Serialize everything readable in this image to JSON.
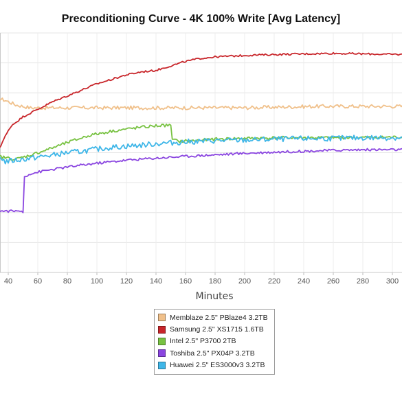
{
  "chart_data": {
    "type": "line",
    "title": "Preconditioning Curve - 4K 100% Write [Avg Latency]",
    "xlabel": "Minutes",
    "ylabel": "",
    "x_ticks": [
      40,
      60,
      80,
      100,
      120,
      140,
      160,
      180,
      200,
      220,
      240,
      260,
      280,
      300
    ],
    "xlim": [
      30,
      308
    ],
    "ylim": [
      0,
      8
    ],
    "grid": true,
    "legend_position": "bottom-center",
    "series": [
      {
        "name": "Memblaze 2.5\" PBlaze4 3.2TB",
        "color": "#F0C08A",
        "x": [
          30,
          34,
          38,
          45,
          55,
          70,
          90,
          110,
          150,
          200,
          250,
          308
        ],
        "y": [
          5.8,
          5.8,
          5.75,
          5.6,
          5.5,
          5.5,
          5.5,
          5.5,
          5.5,
          5.5,
          5.55,
          5.55
        ],
        "noise": 0.06
      },
      {
        "name": "Samsung 2.5\" XS1715 1.6TB",
        "color": "#C8252A",
        "x": [
          30,
          32,
          35,
          38,
          42,
          50,
          60,
          70,
          80,
          90,
          100,
          110,
          120,
          130,
          140,
          150,
          160,
          170,
          180,
          200,
          220,
          240,
          260,
          280,
          308
        ],
        "y": [
          3.9,
          4.0,
          4.25,
          4.55,
          4.9,
          5.2,
          5.45,
          5.7,
          5.9,
          6.1,
          6.3,
          6.45,
          6.6,
          6.7,
          6.75,
          6.9,
          7.05,
          7.15,
          7.2,
          7.25,
          7.28,
          7.3,
          7.32,
          7.3,
          7.28
        ],
        "noise": 0.03
      },
      {
        "name": "Intel 2.5\" P3700 2TB",
        "color": "#78C242",
        "x": [
          30,
          31,
          33,
          36,
          40,
          45,
          55,
          65,
          75,
          85,
          95,
          110,
          125,
          140,
          150,
          151,
          155,
          165,
          180,
          200,
          230,
          260,
          308
        ],
        "y": [
          3.2,
          3.9,
          3.9,
          3.85,
          3.82,
          3.78,
          3.92,
          4.08,
          4.25,
          4.42,
          4.58,
          4.72,
          4.82,
          4.9,
          4.92,
          4.45,
          4.38,
          4.4,
          4.45,
          4.48,
          4.5,
          4.5,
          4.52
        ],
        "noise": 0.05
      },
      {
        "name": "Toshiba 2.5\" PX04P 3.2TB",
        "color": "#8A45E0",
        "x": [
          30,
          31,
          49,
          50,
          51,
          55,
          65,
          80,
          100,
          120,
          140,
          160,
          180,
          200,
          220,
          240,
          260,
          280,
          308
        ],
        "y": [
          2.05,
          2.05,
          2.05,
          2.0,
          3.2,
          3.3,
          3.4,
          3.52,
          3.65,
          3.75,
          3.82,
          3.88,
          3.93,
          3.98,
          4.02,
          4.05,
          4.08,
          4.1,
          4.1
        ],
        "noise": 0.04
      },
      {
        "name": "Huawei 2.5\" ES3000v3 3.2TB",
        "color": "#3EB6E8",
        "x": [
          30,
          32,
          35,
          38,
          40,
          50,
          60,
          70,
          80,
          90,
          100,
          110,
          120,
          130,
          140,
          150,
          160,
          170,
          180,
          200,
          220,
          240,
          260,
          280,
          308
        ],
        "y": [
          3.5,
          3.9,
          3.85,
          3.7,
          3.72,
          3.78,
          3.85,
          3.92,
          4.0,
          4.05,
          4.12,
          4.18,
          4.22,
          4.25,
          4.3,
          4.33,
          4.36,
          4.38,
          4.4,
          4.42,
          4.45,
          4.47,
          4.48,
          4.5,
          4.5
        ],
        "noise": 0.09
      }
    ]
  }
}
